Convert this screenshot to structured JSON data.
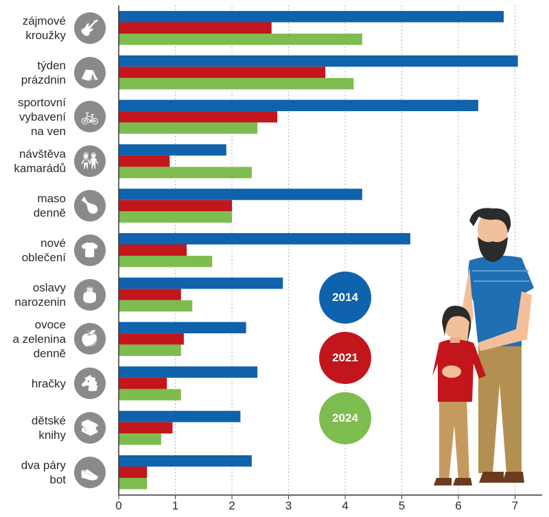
{
  "chart_data": {
    "type": "bar",
    "orientation": "horizontal",
    "categories": [
      "zájmové\nkroužky",
      "týden\nprázdnin",
      "sportovní\nvybavení\nna ven",
      "návštěva\nkamarádů",
      "maso\ndenně",
      "nové\noblečení",
      "oslavy\nnarozenin",
      "ovoce\na zelenina\ndenně",
      "hračky",
      "dětské\nknihy",
      "dva páry\nbot"
    ],
    "series": [
      {
        "name": "2014",
        "color": "#0f62ac",
        "values": [
          6.8,
          7.05,
          6.35,
          1.9,
          4.3,
          5.15,
          2.9,
          2.25,
          2.45,
          2.15,
          2.35
        ]
      },
      {
        "name": "2021",
        "color": "#c2161c",
        "values": [
          2.7,
          3.65,
          2.8,
          0.9,
          2.0,
          1.2,
          1.1,
          1.15,
          0.85,
          0.95,
          0.5
        ]
      },
      {
        "name": "2024",
        "color": "#7dbc4e",
        "values": [
          4.3,
          4.15,
          2.45,
          2.35,
          2.0,
          1.65,
          1.3,
          1.1,
          1.1,
          0.75,
          0.5
        ]
      }
    ],
    "xticks": [
      "0",
      "1",
      "2",
      "3",
      "4",
      "5",
      "6",
      "7"
    ],
    "xlim": [
      0,
      7.5
    ],
    "grid": true,
    "legend": "center-right",
    "icons": [
      "guitar-icon",
      "camping-tent-icon",
      "bicycle-icon",
      "friends-icon",
      "chicken-icon",
      "tshirt-icon",
      "birthday-cake-icon",
      "fruit-icon",
      "rocking-horse-icon",
      "books-icon",
      "shoes-icon"
    ]
  }
}
